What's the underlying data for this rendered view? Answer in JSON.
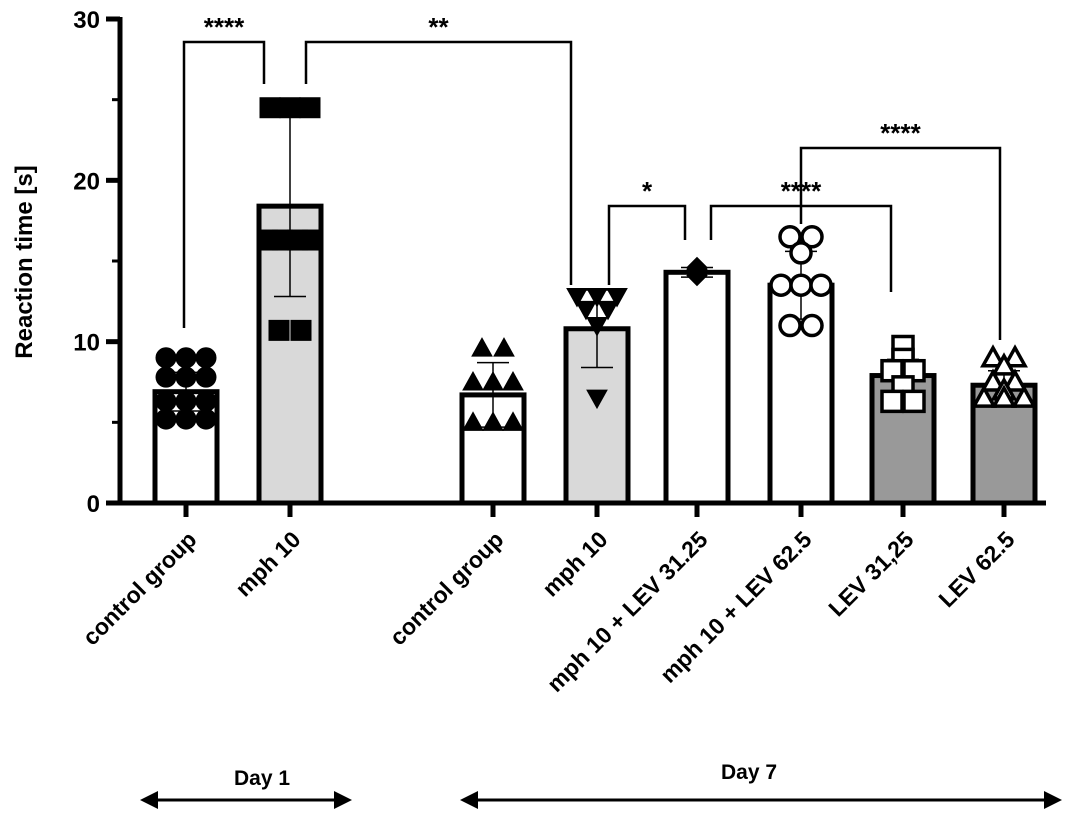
{
  "chart_data": {
    "type": "bar",
    "ylabel": "Reaction time [s]",
    "ylim": [
      0,
      30
    ],
    "yticks": [
      "0",
      "10",
      "20",
      "30"
    ],
    "grid": false,
    "categories": [
      "control group",
      "mph 10",
      "control group",
      "mph 10",
      "mph 10 + LEV 31.25",
      "mph 10 + LEV 62.5",
      "LEV 31,25",
      "LEV 62.5"
    ],
    "values": [
      6.9,
      18.4,
      6.7,
      10.8,
      14.3,
      13.5,
      7.9,
      7.3
    ],
    "sd": [
      1.2,
      5.6,
      2.0,
      2.4,
      0.3,
      2.1,
      1.0,
      0.9
    ],
    "fills": [
      "#ffffff",
      "#d9d9d9",
      "#ffffff",
      "#d9d9d9",
      "#ffffff",
      "#ffffff",
      "#999999",
      "#999999"
    ],
    "markers": [
      "circle-filled",
      "square-filled",
      "triangle-up-filled",
      "triangle-down-filled",
      "diamond-filled",
      "circle-open",
      "square-open",
      "triangle-open"
    ],
    "points": [
      [
        9.0,
        9.0,
        9.0,
        7.8,
        7.8,
        7.8,
        6.3,
        6.3,
        6.3,
        5.2,
        5.2,
        5.2
      ],
      [
        24.5,
        24.5,
        24.5,
        16.3,
        16.3,
        16.3,
        16.3,
        10.7,
        10.7
      ],
      [
        9.6,
        9.6,
        7.5,
        7.5,
        7.5,
        5.0,
        5.0,
        5.0
      ],
      [
        12.8,
        12.8,
        12.8,
        12.0,
        12.0,
        11.0,
        6.5
      ],
      [
        14.6,
        14.5,
        14.4,
        14.3,
        14.2,
        14.1
      ],
      [
        16.5,
        16.5,
        15.5,
        13.5,
        13.5,
        13.5,
        11.0,
        11.0
      ],
      [
        9.7,
        8.9,
        8.2,
        8.2,
        7.2,
        6.3,
        6.3
      ],
      [
        9.0,
        9.0,
        8.5,
        7.5,
        7.5,
        7.0,
        6.5,
        6.5,
        6.5
      ]
    ],
    "significance": [
      {
        "from": 0,
        "to": 1,
        "label": "****"
      },
      {
        "from": 1,
        "to": 3,
        "label": "**"
      },
      {
        "from": 3,
        "to": 4,
        "label": "*"
      },
      {
        "from": 4,
        "to": 6,
        "label": "****"
      },
      {
        "from": 5,
        "to": 7,
        "label": "****"
      }
    ],
    "groups": [
      {
        "label": "Day 1",
        "from": 0,
        "to": 1
      },
      {
        "label": "Day 7",
        "from": 2,
        "to": 7
      }
    ]
  }
}
